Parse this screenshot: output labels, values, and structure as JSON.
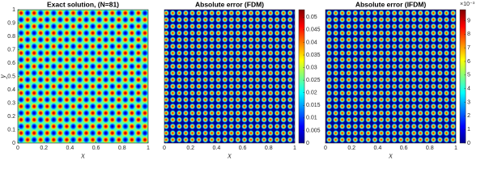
{
  "chart_data": [
    {
      "type": "heatmap",
      "title": "Exact solution, (N=81)",
      "xlabel": "x",
      "ylabel": "y",
      "xlim": [
        0,
        1
      ],
      "ylim": [
        0,
        1
      ],
      "colormap": "jet",
      "xticks": [
        0,
        0.2,
        0.4,
        0.6,
        0.8,
        1
      ],
      "yticks": [
        0,
        0.1,
        0.2,
        0.3,
        0.4,
        0.5,
        0.6,
        0.7,
        0.8,
        0.9,
        1
      ]
    },
    {
      "type": "heatmap",
      "title": "Absolute error (FDM)",
      "xlabel": "x",
      "xlim": [
        0,
        1
      ],
      "ylim": [
        0,
        1
      ],
      "colormap": "jet",
      "xticks": [
        0,
        0.2,
        0.4,
        0.6,
        0.8,
        1
      ],
      "colorbar": {
        "lim": [
          0,
          0.053
        ],
        "ticks": [
          0,
          0.005,
          0.01,
          0.015,
          0.02,
          0.025,
          0.03,
          0.035,
          0.04,
          0.045,
          0.05
        ]
      }
    },
    {
      "type": "heatmap",
      "title": "Absolute error (IFDM)",
      "xlabel": "x",
      "xlim": [
        0,
        1
      ],
      "ylim": [
        0,
        1
      ],
      "colormap": "jet",
      "xticks": [
        0,
        0.2,
        0.4,
        0.6,
        0.8,
        1
      ],
      "colorbar": {
        "lim": [
          0,
          9.8
        ],
        "ticks": [
          0,
          1,
          2,
          3,
          4,
          5,
          6,
          7,
          8,
          9
        ],
        "exponent": "×10⁻³"
      }
    }
  ]
}
